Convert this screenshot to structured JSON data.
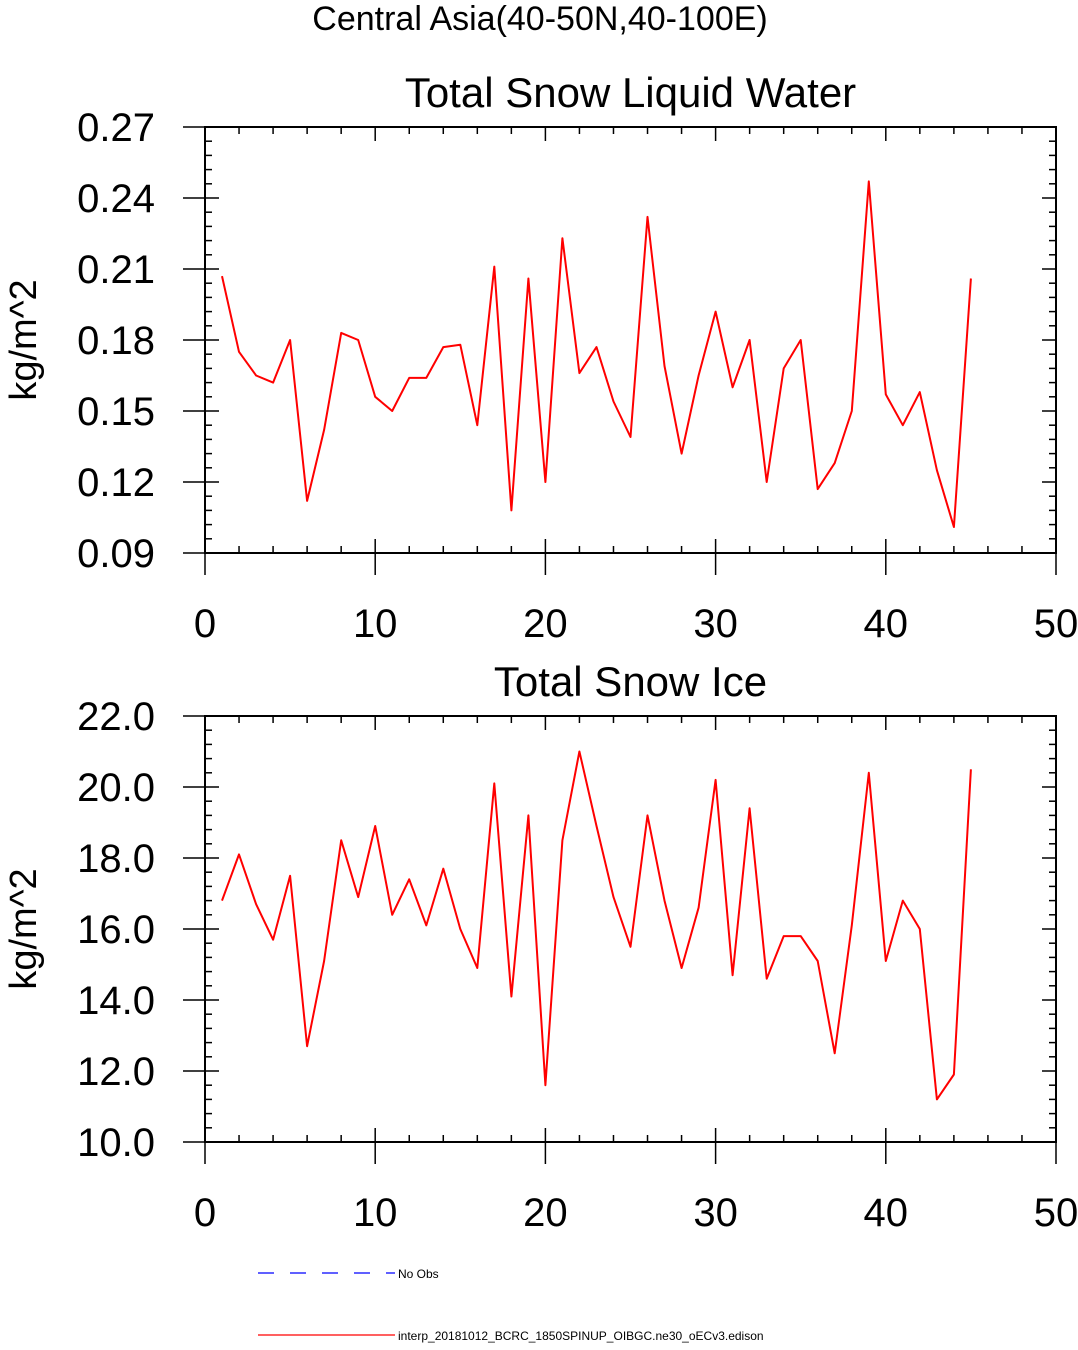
{
  "page": {
    "suptitle": "Central Asia(40-50N,40-100E)"
  },
  "colors": {
    "model_line": "#ff0000",
    "obs_line": "#0000ff",
    "axes": "#000000"
  },
  "legend": {
    "obs_label": "No Obs",
    "model_label": "interp_20181012_BCRC_1850SPINUP_OIBGC.ne30_oECv3.edison"
  },
  "chart_data": [
    {
      "type": "line",
      "title": "Total Snow Liquid Water",
      "xlabel": "",
      "ylabel": "kg/m^2",
      "xlim": [
        0,
        50
      ],
      "ylim": [
        0.09,
        0.27
      ],
      "xticks": [
        0,
        10,
        20,
        30,
        40,
        50
      ],
      "xtick_labels": [
        "0",
        "10",
        "20",
        "30",
        "40",
        "50"
      ],
      "yticks": [
        0.09,
        0.12,
        0.15,
        0.18,
        0.21,
        0.24,
        0.27
      ],
      "ytick_labels": [
        "0.09",
        "0.12",
        "0.15",
        "0.18",
        "0.21",
        "0.24",
        "0.27"
      ],
      "grid": false,
      "legend_position": "bottom",
      "series": [
        {
          "x": [
            1,
            2,
            3,
            4,
            5,
            6,
            7,
            8,
            9,
            10,
            11,
            12,
            13,
            14,
            15,
            16,
            17,
            18,
            19,
            20,
            21,
            22,
            23,
            24,
            25,
            26,
            27,
            28,
            29,
            30,
            31,
            32,
            33,
            34,
            35,
            36,
            37,
            38,
            39,
            40,
            41,
            42,
            43,
            44,
            45
          ],
          "values": [
            0.207,
            0.175,
            0.165,
            0.162,
            0.18,
            0.112,
            0.142,
            0.183,
            0.18,
            0.156,
            0.15,
            0.164,
            0.164,
            0.177,
            0.178,
            0.144,
            0.211,
            0.108,
            0.206,
            0.12,
            0.223,
            0.166,
            0.177,
            0.154,
            0.139,
            0.232,
            0.169,
            0.132,
            0.165,
            0.192,
            0.16,
            0.18,
            0.12,
            0.168,
            0.18,
            0.117,
            0.128,
            0.15,
            0.247,
            0.157,
            0.144,
            0.158,
            0.125,
            0.101,
            0.206
          ]
        }
      ]
    },
    {
      "type": "line",
      "title": "Total Snow Ice",
      "xlabel": "",
      "ylabel": "kg/m^2",
      "xlim": [
        0,
        50
      ],
      "ylim": [
        10.0,
        22.0
      ],
      "xticks": [
        0,
        10,
        20,
        30,
        40,
        50
      ],
      "xtick_labels": [
        "0",
        "10",
        "20",
        "30",
        "40",
        "50"
      ],
      "yticks": [
        10,
        12,
        14,
        16,
        18,
        20,
        22
      ],
      "ytick_labels": [
        "10.0",
        "12.0",
        "14.0",
        "16.0",
        "18.0",
        "20.0",
        "22.0"
      ],
      "grid": false,
      "legend_position": "bottom",
      "series": [
        {
          "x": [
            1,
            2,
            3,
            4,
            5,
            6,
            7,
            8,
            9,
            10,
            11,
            12,
            13,
            14,
            15,
            16,
            17,
            18,
            19,
            20,
            21,
            22,
            23,
            24,
            25,
            26,
            27,
            28,
            29,
            30,
            31,
            32,
            33,
            34,
            35,
            36,
            37,
            38,
            39,
            40,
            41,
            42,
            43,
            44,
            45
          ],
          "values": [
            16.8,
            18.1,
            16.7,
            15.7,
            17.5,
            12.7,
            15.1,
            18.5,
            16.9,
            18.9,
            16.4,
            17.4,
            16.1,
            17.7,
            16.0,
            14.9,
            20.1,
            14.1,
            19.2,
            11.6,
            18.5,
            21.0,
            18.9,
            16.9,
            15.5,
            19.2,
            16.8,
            14.9,
            16.6,
            20.2,
            14.7,
            19.4,
            14.6,
            15.8,
            15.8,
            15.1,
            12.5,
            16.1,
            20.4,
            15.1,
            16.8,
            16.0,
            11.2,
            11.9,
            20.5
          ]
        }
      ]
    }
  ]
}
